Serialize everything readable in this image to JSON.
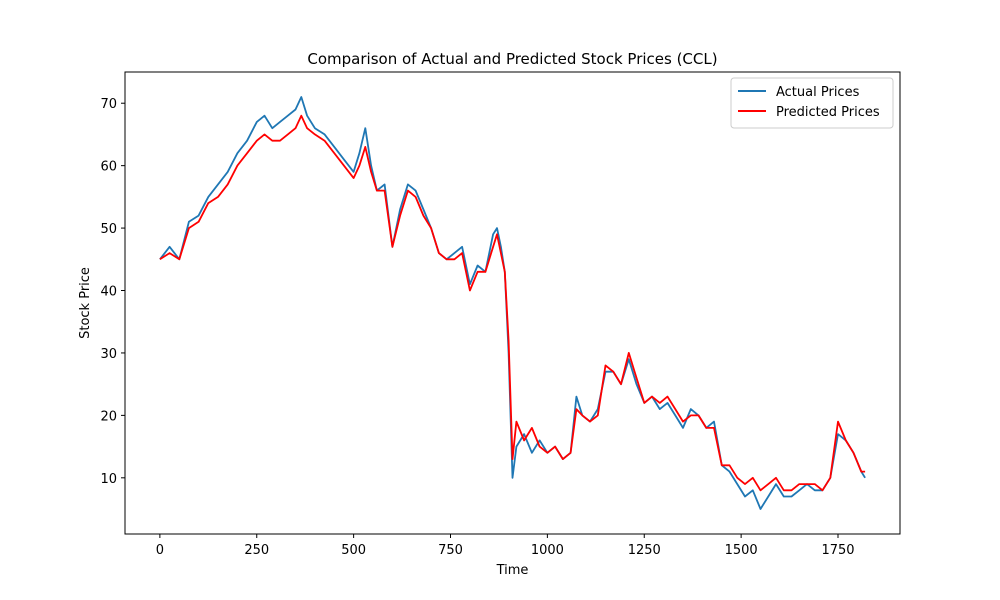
{
  "chart_data": {
    "type": "line",
    "title": "Comparison of Actual and Predicted Stock Prices (CCL)",
    "xlabel": "Time",
    "ylabel": "Stock Price",
    "xlim": [
      -90,
      1910
    ],
    "ylim": [
      1,
      75
    ],
    "xticks": [
      0,
      250,
      500,
      750,
      1000,
      1250,
      1500,
      1750
    ],
    "yticks": [
      10,
      20,
      30,
      40,
      50,
      60,
      70
    ],
    "grid": false,
    "legend_position": "top-right",
    "series": [
      {
        "name": "Actual Prices",
        "color": "#1f77b4",
        "x": [
          0,
          25,
          50,
          75,
          100,
          125,
          150,
          175,
          200,
          225,
          250,
          270,
          290,
          310,
          330,
          350,
          365,
          380,
          400,
          425,
          450,
          475,
          500,
          515,
          530,
          545,
          560,
          580,
          600,
          620,
          640,
          660,
          680,
          700,
          720,
          740,
          760,
          780,
          800,
          820,
          840,
          860,
          870,
          880,
          890,
          900,
          910,
          920,
          940,
          960,
          980,
          1000,
          1020,
          1040,
          1060,
          1075,
          1090,
          1110,
          1130,
          1150,
          1170,
          1190,
          1210,
          1230,
          1250,
          1270,
          1290,
          1310,
          1330,
          1350,
          1370,
          1390,
          1410,
          1430,
          1450,
          1470,
          1490,
          1510,
          1530,
          1550,
          1570,
          1590,
          1610,
          1630,
          1650,
          1670,
          1690,
          1710,
          1730,
          1750,
          1770,
          1790,
          1810,
          1820
        ],
        "values": [
          45,
          47,
          45,
          51,
          52,
          55,
          57,
          59,
          62,
          64,
          67,
          68,
          66,
          67,
          68,
          69,
          71,
          68,
          66,
          65,
          63,
          61,
          59,
          62,
          66,
          60,
          56,
          57,
          47,
          53,
          57,
          56,
          53,
          50,
          46,
          45,
          46,
          47,
          41,
          44,
          43,
          49,
          50,
          47,
          43,
          30,
          10,
          15,
          17,
          14,
          16,
          14,
          15,
          13,
          14,
          23,
          20,
          19,
          21,
          27,
          27,
          25,
          29,
          25,
          22,
          23,
          21,
          22,
          20,
          18,
          21,
          20,
          18,
          19,
          12,
          11,
          9,
          7,
          8,
          5,
          7,
          9,
          7,
          7,
          8,
          9,
          8,
          8,
          10,
          17,
          16,
          14,
          11,
          10
        ]
      },
      {
        "name": "Predicted Prices",
        "color": "#ff0000",
        "x": [
          0,
          25,
          50,
          75,
          100,
          125,
          150,
          175,
          200,
          225,
          250,
          270,
          290,
          310,
          330,
          350,
          365,
          380,
          400,
          425,
          450,
          475,
          500,
          515,
          530,
          545,
          560,
          580,
          600,
          620,
          640,
          660,
          680,
          700,
          720,
          740,
          760,
          780,
          800,
          820,
          840,
          860,
          870,
          880,
          890,
          900,
          910,
          920,
          940,
          960,
          980,
          1000,
          1020,
          1040,
          1060,
          1075,
          1090,
          1110,
          1130,
          1150,
          1170,
          1190,
          1210,
          1230,
          1250,
          1270,
          1290,
          1310,
          1330,
          1350,
          1370,
          1390,
          1410,
          1430,
          1450,
          1470,
          1490,
          1510,
          1530,
          1550,
          1570,
          1590,
          1610,
          1630,
          1650,
          1670,
          1690,
          1710,
          1730,
          1750,
          1770,
          1790,
          1810,
          1820
        ],
        "values": [
          45,
          46,
          45,
          50,
          51,
          54,
          55,
          57,
          60,
          62,
          64,
          65,
          64,
          64,
          65,
          66,
          68,
          66,
          65,
          64,
          62,
          60,
          58,
          60,
          63,
          59,
          56,
          56,
          47,
          52,
          56,
          55,
          52,
          50,
          46,
          45,
          45,
          46,
          40,
          43,
          43,
          47,
          49,
          46,
          43,
          32,
          13,
          19,
          16,
          18,
          15,
          14,
          15,
          13,
          14,
          21,
          20,
          19,
          20,
          28,
          27,
          25,
          30,
          26,
          22,
          23,
          22,
          23,
          21,
          19,
          20,
          20,
          18,
          18,
          12,
          12,
          10,
          9,
          10,
          8,
          9,
          10,
          8,
          8,
          9,
          9,
          9,
          8,
          10,
          19,
          16,
          14,
          11,
          11
        ]
      }
    ]
  }
}
